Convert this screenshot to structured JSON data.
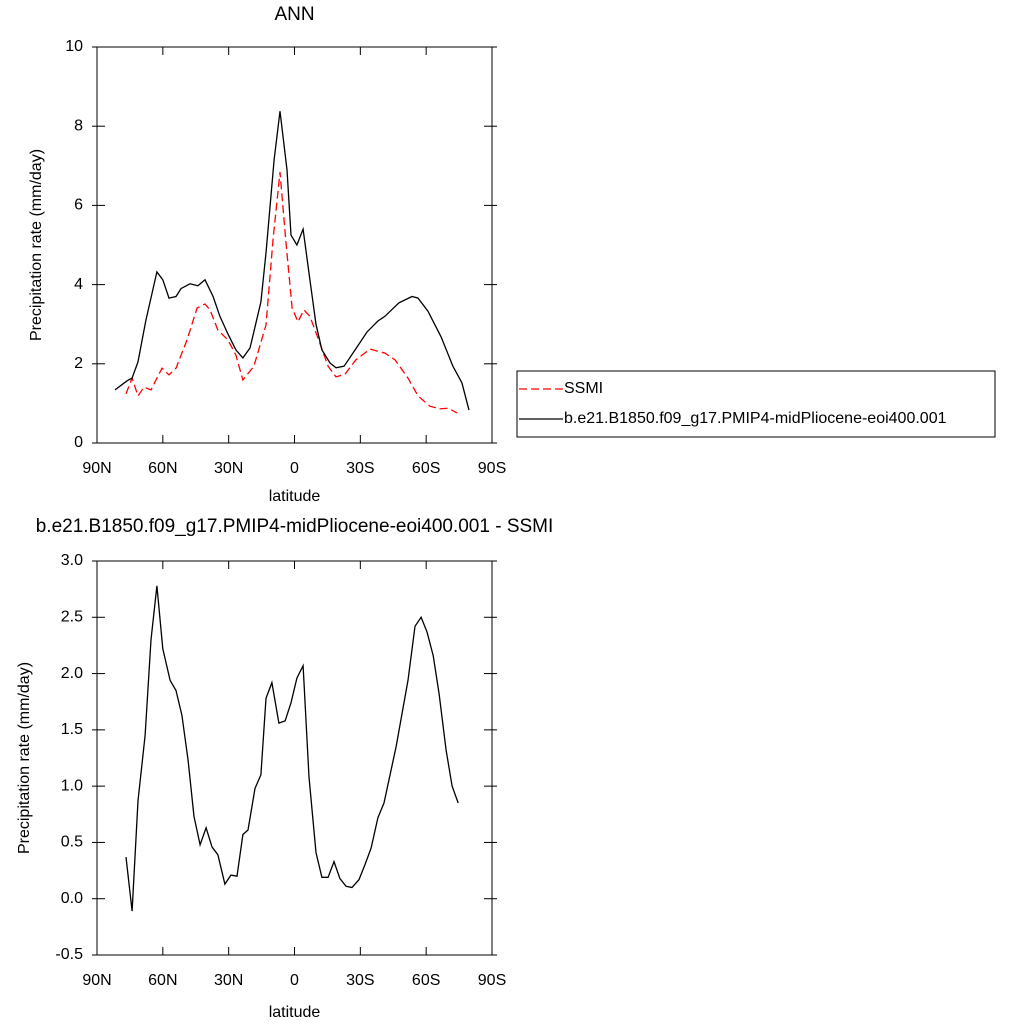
{
  "chart_data": [
    {
      "type": "line",
      "title": "ANN",
      "xlabel": "latitude",
      "ylabel": "Precipitation rate (mm/day)",
      "xlim": [
        90,
        -90
      ],
      "xticks": [
        {
          "value": 90,
          "label": "90N"
        },
        {
          "value": 60,
          "label": "60N"
        },
        {
          "value": 30,
          "label": "30N"
        },
        0,
        {
          "value": -30,
          "label": "30S"
        },
        {
          "value": -60,
          "label": "60S"
        },
        {
          "value": -90,
          "label": "90S"
        }
      ],
      "ylim": [
        0,
        10
      ],
      "yticks": [
        0,
        2,
        4,
        6,
        8,
        10
      ],
      "legend": "right",
      "series": [
        {
          "name": "SSMI",
          "color": "#ff0000",
          "line_style": "dashed",
          "x": [
            76.8,
            74,
            71.3,
            68.6,
            65.4,
            60.4,
            57.2,
            54,
            49,
            44.4,
            40.8,
            38.5,
            34.9,
            30.3,
            26.7,
            23.5,
            18.5,
            13,
            9.8,
            6.6,
            3.9,
            1.1,
            -1.6,
            -4.3,
            -7,
            -10.7,
            -15.3,
            -18.9,
            -23,
            -28,
            -34.4,
            -41.2,
            -45.8,
            -51.7,
            -56.3,
            -61.7,
            -66.3,
            -70,
            -74.1
          ],
          "values": [
            1.24,
            1.64,
            1.19,
            1.41,
            1.34,
            1.89,
            1.72,
            1.89,
            2.6,
            3.41,
            3.51,
            3.36,
            2.85,
            2.6,
            2.22,
            1.59,
            1.94,
            2.98,
            5.13,
            6.84,
            5.08,
            3.41,
            3.06,
            3.36,
            3.2,
            2.65,
            1.94,
            1.67,
            1.74,
            2.1,
            2.37,
            2.27,
            2.1,
            1.64,
            1.19,
            0.93,
            0.86,
            0.88,
            0.76
          ]
        },
        {
          "name": "b.e21.B1850.f09_g17.PMIP4-midPliocene-eoi400.001",
          "color": "#000000",
          "line_style": "solid",
          "x": [
            81.8,
            76.3,
            74,
            71.3,
            67.7,
            62.7,
            60,
            57.2,
            54,
            51.7,
            47.6,
            44,
            40.8,
            37.1,
            34,
            30.3,
            26.7,
            23.5,
            20.3,
            15.3,
            13,
            9.3,
            6.6,
            3.4,
            1.6,
            -1.1,
            -3.9,
            -7,
            -9.8,
            -12.5,
            -16.2,
            -18.9,
            -22.6,
            -27.6,
            -33,
            -38,
            -41.2,
            -47.6,
            -53.6,
            -56.3,
            -60.8,
            -66.8,
            -72.2,
            -76.3,
            -79.5
          ],
          "values": [
            1.34,
            1.57,
            1.64,
            2.05,
            3.1,
            4.32,
            4.12,
            3.66,
            3.7,
            3.9,
            4.02,
            3.97,
            4.12,
            3.7,
            3.2,
            2.75,
            2.35,
            2.15,
            2.4,
            3.56,
            4.8,
            7.15,
            8.38,
            6.9,
            5.25,
            5.0,
            5.4,
            4.12,
            3.0,
            2.35,
            2.02,
            1.9,
            1.94,
            2.35,
            2.8,
            3.08,
            3.2,
            3.54,
            3.7,
            3.66,
            3.33,
            2.68,
            1.94,
            1.52,
            0.83
          ]
        }
      ]
    },
    {
      "type": "line",
      "title": "b.e21.B1850.f09_g17.PMIP4-midPliocene-eoi400.001 - SSMI",
      "xlabel": "latitude",
      "ylabel": "Precipitation rate (mm/day)",
      "xlim": [
        90,
        -90
      ],
      "xticks": [
        {
          "value": 90,
          "label": "90N"
        },
        {
          "value": 60,
          "label": "60N"
        },
        {
          "value": 30,
          "label": "30N"
        },
        0,
        {
          "value": -30,
          "label": "30S"
        },
        {
          "value": -60,
          "label": "60S"
        },
        {
          "value": -90,
          "label": "90S"
        }
      ],
      "ylim": [
        -0.5,
        3.0
      ],
      "yticks": [
        {
          "value": -0.5,
          "label": "-0.5"
        },
        {
          "value": 0,
          "label": "0.0"
        },
        {
          "value": 0.5,
          "label": "0.5"
        },
        {
          "value": 1,
          "label": "1.0"
        },
        {
          "value": 1.5,
          "label": "1.5"
        },
        {
          "value": 2,
          "label": "2.0"
        },
        {
          "value": 2.5,
          "label": "2.5"
        },
        {
          "value": 3,
          "label": "3.0"
        }
      ],
      "color": "#000000",
      "x": [
        76.8,
        74,
        71.3,
        68.1,
        65.4,
        62.7,
        60,
        56.7,
        54,
        51.3,
        48.5,
        45.8,
        43,
        40.3,
        37.6,
        34.9,
        31.7,
        29,
        26.2,
        23.5,
        21.2,
        18,
        15.3,
        13,
        10.3,
        7.1,
        4.3,
        1.6,
        -1.1,
        -3.9,
        -6.6,
        -9.8,
        -12.5,
        -15.3,
        -18,
        -20.7,
        -23.5,
        -26.2,
        -29.4,
        -32.1,
        -34.9,
        -38,
        -40.8,
        -46.3,
        -51.7,
        -54.9,
        -57.7,
        -60.4,
        -63.2,
        -65.9,
        -69.1,
        -71.8,
        -74.6
      ],
      "values": [
        0.37,
        -0.11,
        0.87,
        1.45,
        2.3,
        2.78,
        2.22,
        1.94,
        1.85,
        1.63,
        1.23,
        0.73,
        0.48,
        0.63,
        0.46,
        0.39,
        0.13,
        0.21,
        0.2,
        0.57,
        0.61,
        0.98,
        1.1,
        1.78,
        1.92,
        1.56,
        1.58,
        1.74,
        1.96,
        2.07,
        1.08,
        0.41,
        0.19,
        0.19,
        0.33,
        0.18,
        0.11,
        0.1,
        0.17,
        0.3,
        0.45,
        0.72,
        0.85,
        1.35,
        1.94,
        2.42,
        2.5,
        2.37,
        2.16,
        1.82,
        1.32,
        1.0,
        0.85
      ]
    }
  ]
}
